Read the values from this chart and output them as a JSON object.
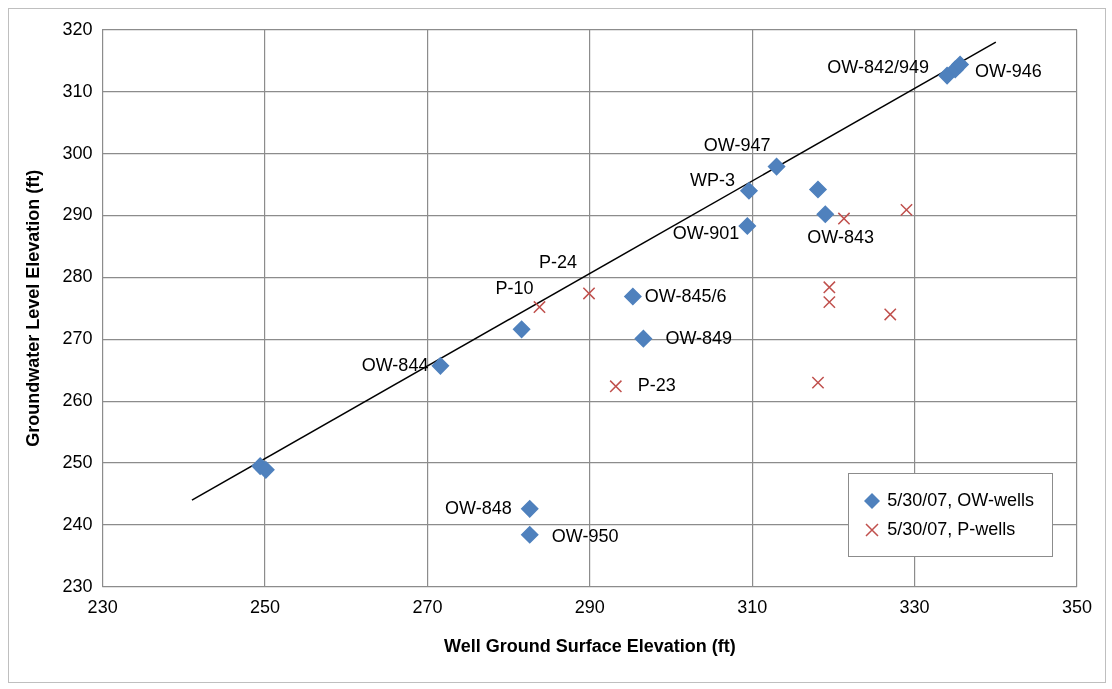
{
  "chart_data": {
    "type": "scatter",
    "xlabel": "Well Ground Surface Elevation (ft)",
    "ylabel": "Groundwater Level Elevation (ft)",
    "xlim": [
      230,
      350
    ],
    "xticks": [
      230,
      250,
      270,
      290,
      310,
      330,
      350
    ],
    "ylim": [
      230,
      320
    ],
    "yticks": [
      230,
      240,
      250,
      260,
      270,
      280,
      290,
      300,
      310,
      320
    ],
    "grid": true,
    "legend": "bottom right",
    "series": [
      {
        "name": "5/30/07, OW-wells",
        "color": "#4f81bd",
        "marker": "diamond",
        "x": [
          249.4,
          250.1,
          271.6,
          281.6,
          282.6,
          282.6,
          295.3,
          296.6,
          309.4,
          309.6,
          313.0,
          318.1,
          319.0,
          334.0,
          335.0,
          335.6
        ],
        "values": [
          249.5,
          248.9,
          265.7,
          271.6,
          242.6,
          238.4,
          276.9,
          270.1,
          288.3,
          294.0,
          297.9,
          294.2,
          290.2,
          312.6,
          313.6,
          314.4
        ]
      },
      {
        "name": "5/30/07, P-wells",
        "color": "#c0504d",
        "marker": "cross",
        "x": [
          283.8,
          289.9,
          293.2,
          318.1,
          319.5,
          319.5,
          321.3,
          327.0,
          329.0
        ],
        "values": [
          275.2,
          277.4,
          262.4,
          263.0,
          278.4,
          276.0,
          289.5,
          274.0,
          290.9
        ]
      },
      {
        "type": "line",
        "color": "#000000",
        "marker": "none",
        "x": [
          241,
          340
        ],
        "values": [
          244,
          318
        ]
      }
    ],
    "annotations": [
      {
        "text": "OW-844",
        "x": 271.6,
        "y": 265.7
      },
      {
        "text": "P-10",
        "x": 283.8,
        "y": 275.2
      },
      {
        "text": "P-24",
        "x": 289.9,
        "y": 277.4
      },
      {
        "text": "OW-848",
        "x": 282.6,
        "y": 242.6
      },
      {
        "text": "OW-950",
        "x": 282.6,
        "y": 238.4
      },
      {
        "text": "OW-845/6",
        "x": 295.3,
        "y": 276.9
      },
      {
        "text": "OW-849",
        "x": 296.6,
        "y": 270.1
      },
      {
        "text": "P-23",
        "x": 293.2,
        "y": 262.4
      },
      {
        "text": "OW-901",
        "x": 309.4,
        "y": 288.3
      },
      {
        "text": "WP-3",
        "x": 309.6,
        "y": 294.0
      },
      {
        "text": "OW-947",
        "x": 313.0,
        "y": 297.9
      },
      {
        "text": "OW-843",
        "x": 319.0,
        "y": 290.2
      },
      {
        "text": "OW-842/949",
        "x": 334.0,
        "y": 312.6
      },
      {
        "text": "OW-946",
        "x": 335.6,
        "y": 314.4
      }
    ]
  }
}
